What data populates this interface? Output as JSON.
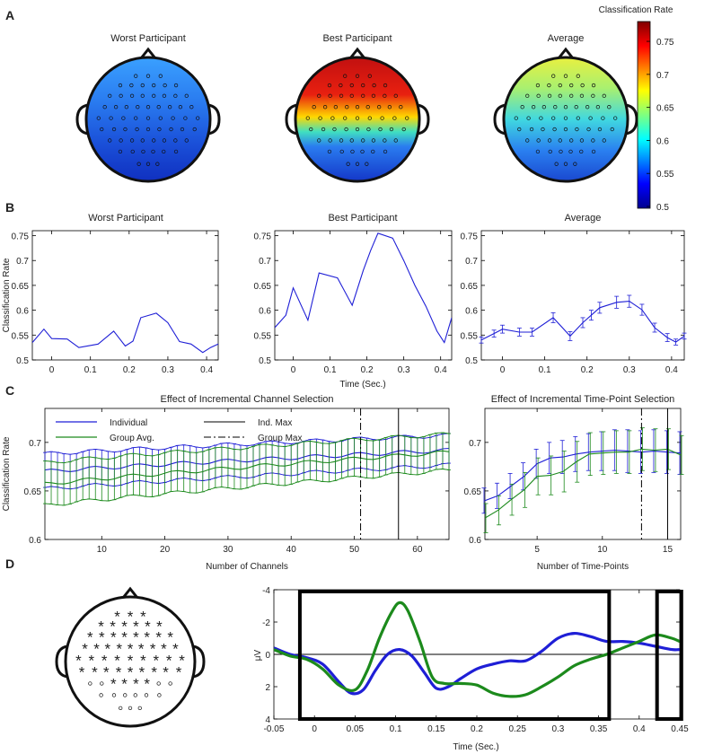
{
  "panels": {
    "A": "A",
    "B": "B",
    "C": "C",
    "D": "D"
  },
  "colors": {
    "blue": "#1f1fd6",
    "green": "#1c8a1c",
    "black": "#000000"
  },
  "chart_data": [
    {
      "id": "A",
      "type": "heatmap",
      "titles": [
        "Worst Participant",
        "Best Participant",
        "Average"
      ],
      "colorbar": {
        "label": "Classification Rate",
        "range": [
          0.5,
          0.78
        ],
        "ticks": [
          0.5,
          0.55,
          0.6,
          0.65,
          0.7,
          0.75
        ],
        "tick_labels": [
          "0.5",
          "0.55",
          "0.6",
          "0.65",
          "0.7",
          "0.75"
        ]
      },
      "summary_values": [
        0.53,
        0.62,
        0.6
      ]
    },
    {
      "id": "B",
      "type": "line",
      "titles": [
        "Worst Participant",
        "Best Participant",
        "Average"
      ],
      "ylabel": "Classification Rate",
      "xlabel": "Time (Sec.)",
      "xlim": [
        -0.05,
        0.43
      ],
      "ylim": [
        0.5,
        0.76
      ],
      "xticks": [
        0,
        0.1,
        0.2,
        0.3,
        0.4
      ],
      "xtick_labels": [
        "0",
        "0.1",
        "0.2",
        "0.3",
        "0.4"
      ],
      "yticks": [
        0.5,
        0.55,
        0.6,
        0.65,
        0.7,
        0.75
      ],
      "ytick_labels": [
        "0.5",
        "0.55",
        "0.6",
        "0.65",
        "0.7",
        "0.75"
      ],
      "x": [
        -0.05,
        -0.02,
        0.0,
        0.04,
        0.07,
        0.12,
        0.16,
        0.19,
        0.21,
        0.23,
        0.27,
        0.3,
        0.33,
        0.36,
        0.39,
        0.41,
        0.43
      ],
      "series": [
        {
          "name": "Worst Participant",
          "values": [
            0.535,
            0.562,
            0.543,
            0.542,
            0.525,
            0.532,
            0.558,
            0.528,
            0.538,
            0.585,
            0.594,
            0.575,
            0.537,
            0.532,
            0.515,
            0.525,
            0.532
          ]
        },
        {
          "name": "Best Participant",
          "values": [
            0.565,
            0.59,
            0.645,
            0.58,
            0.675,
            0.665,
            0.61,
            0.68,
            0.72,
            0.755,
            0.745,
            0.7,
            0.65,
            0.608,
            0.558,
            0.535,
            0.585
          ]
        },
        {
          "name": "Average",
          "values": [
            0.54,
            0.553,
            0.562,
            0.556,
            0.556,
            0.585,
            0.548,
            0.575,
            0.59,
            0.605,
            0.616,
            0.618,
            0.601,
            0.565,
            0.545,
            0.536,
            0.548
          ],
          "errors": [
            0.006,
            0.007,
            0.008,
            0.008,
            0.008,
            0.01,
            0.009,
            0.01,
            0.01,
            0.011,
            0.012,
            0.012,
            0.011,
            0.009,
            0.008,
            0.006,
            0.006
          ]
        }
      ]
    },
    {
      "id": "C-channels",
      "type": "line",
      "title": "Effect of Incremental Channel Selection",
      "xlabel": "Number of Channels",
      "ylabel": "Classification Rate",
      "xlim": [
        1,
        65
      ],
      "ylim": [
        0.6,
        0.735
      ],
      "xticks": [
        10,
        20,
        30,
        40,
        50,
        60
      ],
      "xtick_labels": [
        "10",
        "20",
        "30",
        "40",
        "50",
        "60"
      ],
      "yticks": [
        0.6,
        0.65,
        0.7
      ],
      "ytick_labels": [
        "0.6",
        "0.65",
        "0.7"
      ],
      "series": [
        {
          "name": "Individual",
          "start": 0.67,
          "end": 0.692,
          "error": 0.018
        },
        {
          "name": "Group Avg.",
          "start": 0.657,
          "end": 0.69,
          "error": 0.022
        }
      ],
      "legend": [
        "Individual",
        "Group Avg.",
        "Ind. Max",
        "Group Max"
      ],
      "ind_max": 57,
      "group_max": 51
    },
    {
      "id": "C-timepoints",
      "type": "line",
      "title": "Effect of Incremental Time-Point Selection",
      "xlabel": "Number of Time-Points",
      "xlim": [
        1,
        16
      ],
      "ylim": [
        0.6,
        0.735
      ],
      "xticks": [
        5,
        10,
        15
      ],
      "xtick_labels": [
        "5",
        "10",
        "15"
      ],
      "yticks": [
        0.6,
        0.65,
        0.7
      ],
      "ytick_labels": [
        "0.6",
        "0.65",
        "0.7"
      ],
      "x": [
        1,
        2,
        3,
        4,
        5,
        6,
        7,
        8,
        9,
        10,
        11,
        12,
        13,
        14,
        15,
        16
      ],
      "series": [
        {
          "name": "Individual",
          "values": [
            0.64,
            0.645,
            0.655,
            0.665,
            0.678,
            0.684,
            0.685,
            0.688,
            0.69,
            0.691,
            0.692,
            0.691,
            0.69,
            0.691,
            0.69,
            0.689
          ],
          "errors": [
            0.013,
            0.013,
            0.013,
            0.014,
            0.015,
            0.016,
            0.017,
            0.018,
            0.019,
            0.02,
            0.021,
            0.022,
            0.022,
            0.022,
            0.022,
            0.022
          ]
        },
        {
          "name": "Group Avg.",
          "values": [
            0.622,
            0.63,
            0.641,
            0.651,
            0.665,
            0.666,
            0.67,
            0.68,
            0.688,
            0.689,
            0.69,
            0.69,
            0.693,
            0.692,
            0.693,
            0.687
          ],
          "errors": [
            0.015,
            0.015,
            0.016,
            0.018,
            0.019,
            0.02,
            0.021,
            0.021,
            0.022,
            0.022,
            0.022,
            0.022,
            0.022,
            0.022,
            0.021,
            0.02
          ]
        }
      ],
      "ind_max": 15,
      "group_max": 13
    },
    {
      "id": "D",
      "type": "line",
      "xlabel": "Time (Sec.)",
      "ylabel": "μV",
      "xlim": [
        -0.05,
        0.45
      ],
      "ylim": [
        4,
        -4
      ],
      "xticks": [
        -0.05,
        0,
        0.05,
        0.1,
        0.15,
        0.2,
        0.25,
        0.3,
        0.35,
        0.4,
        0.45
      ],
      "xtick_labels": [
        "-0.05",
        "0",
        "0.05",
        "0.1",
        "0.15",
        "0.2",
        "0.25",
        "0.3",
        "0.35",
        "0.4",
        "0.45"
      ],
      "yticks": [
        -4,
        -2,
        0,
        2,
        4
      ],
      "ytick_labels": [
        "-4",
        "-2",
        "0",
        "2",
        "4"
      ],
      "series": [
        {
          "name": "blue",
          "x": [
            -0.05,
            -0.03,
            -0.01,
            0.01,
            0.03,
            0.045,
            0.06,
            0.075,
            0.09,
            0.105,
            0.12,
            0.135,
            0.15,
            0.165,
            0.18,
            0.2,
            0.22,
            0.24,
            0.26,
            0.28,
            0.3,
            0.32,
            0.34,
            0.36,
            0.38,
            0.4,
            0.42,
            0.44,
            0.45
          ],
          "values": [
            -0.4,
            0.0,
            0.2,
            0.6,
            1.7,
            2.4,
            2.2,
            1.0,
            0.0,
            -0.3,
            0.1,
            1.1,
            2.1,
            2.0,
            1.5,
            0.9,
            0.6,
            0.4,
            0.4,
            -0.2,
            -1.0,
            -1.3,
            -1.1,
            -0.8,
            -0.8,
            -0.7,
            -0.5,
            -0.3,
            -0.3
          ]
        },
        {
          "name": "green",
          "x": [
            -0.05,
            -0.03,
            -0.01,
            0.01,
            0.03,
            0.05,
            0.065,
            0.08,
            0.095,
            0.105,
            0.115,
            0.13,
            0.145,
            0.16,
            0.18,
            0.2,
            0.22,
            0.24,
            0.26,
            0.28,
            0.3,
            0.32,
            0.34,
            0.36,
            0.38,
            0.4,
            0.42,
            0.44,
            0.45
          ],
          "values": [
            -0.3,
            0.1,
            0.3,
            0.9,
            1.9,
            2.2,
            1.0,
            -1.0,
            -2.6,
            -3.2,
            -2.7,
            -0.8,
            1.4,
            1.8,
            1.8,
            1.9,
            2.4,
            2.6,
            2.5,
            2.0,
            1.4,
            0.7,
            0.3,
            0.0,
            -0.4,
            -0.8,
            -1.2,
            -1.0,
            -0.8
          ]
        }
      ],
      "windows": [
        [
          -0.018,
          0.363
        ],
        [
          0.422,
          0.452
        ]
      ],
      "head_map": {
        "sensors": "* o"
      }
    }
  ]
}
